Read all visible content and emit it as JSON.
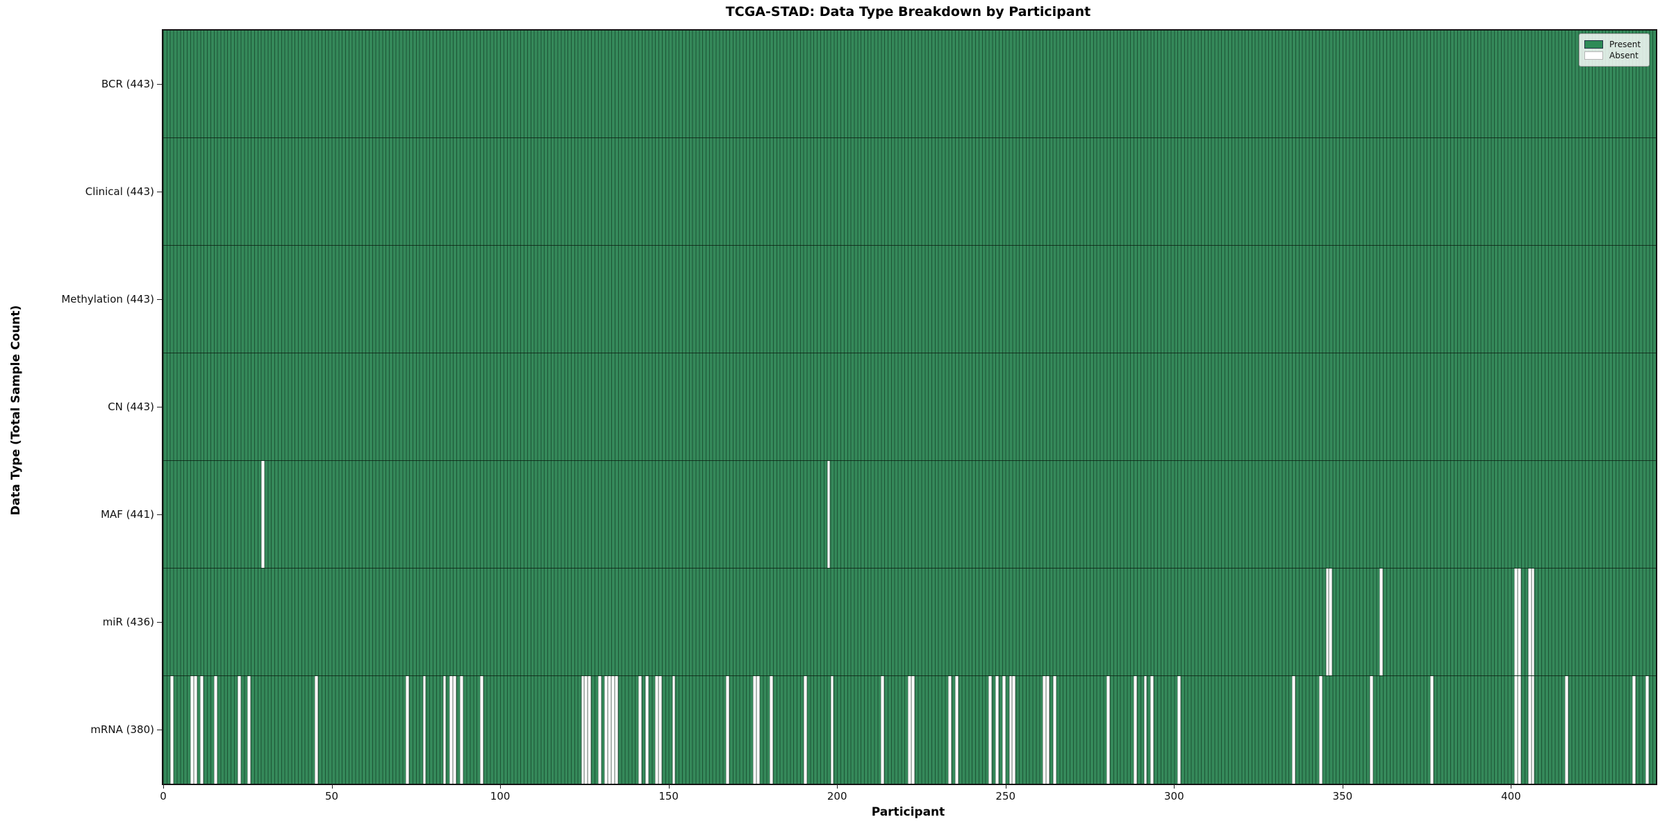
{
  "chart_data": {
    "type": "heatmap",
    "title": "TCGA-STAD: Data Type Breakdown by Participant",
    "xlabel": "Participant",
    "ylabel": "Data Type (Total Sample Count)",
    "x_ticks": [
      0,
      50,
      100,
      150,
      200,
      250,
      300,
      350,
      400
    ],
    "xlim": [
      0,
      443
    ],
    "n_participants": 443,
    "grid": false,
    "legend": {
      "position": "upper right",
      "present_label": "Present",
      "absent_label": "Absent"
    },
    "colors": {
      "present": "#2e8b57",
      "absent": "#ffffff",
      "bar_edge": "#17452b"
    },
    "rows": [
      {
        "label": "BCR (443)",
        "total": 443,
        "absent": []
      },
      {
        "label": "Clinical (443)",
        "total": 443,
        "absent": []
      },
      {
        "label": "Methylation (443)",
        "total": 443,
        "absent": []
      },
      {
        "label": "CN (443)",
        "total": 443,
        "absent": []
      },
      {
        "label": "MAF (441)",
        "total": 441,
        "absent": [
          29,
          197
        ]
      },
      {
        "label": "miR (436)",
        "total": 436,
        "absent": [
          345,
          346,
          361,
          401,
          402,
          405,
          406
        ]
      },
      {
        "label": "mRNA (380)",
        "total": 380,
        "absent": [
          2,
          8,
          9,
          11,
          15,
          22,
          25,
          45,
          72,
          77,
          83,
          85,
          86,
          88,
          94,
          124,
          125,
          126,
          129,
          131,
          132,
          133,
          134,
          141,
          143,
          146,
          147,
          151,
          167,
          175,
          176,
          180,
          190,
          198,
          213,
          221,
          222,
          233,
          235,
          245,
          247,
          249,
          251,
          252,
          261,
          262,
          264,
          280,
          288,
          291,
          293,
          301,
          335,
          343,
          358,
          376,
          401,
          402,
          405,
          406,
          416,
          436,
          440
        ]
      }
    ]
  }
}
